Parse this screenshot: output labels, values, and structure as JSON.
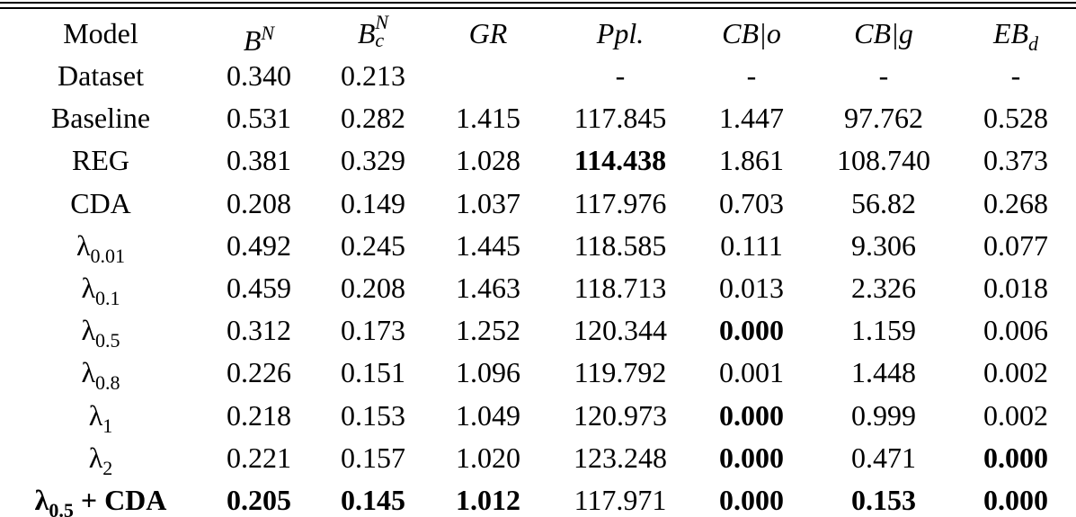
{
  "table": {
    "header": [
      {
        "text": "Model",
        "math": false
      },
      {
        "text": "B",
        "sup": "N",
        "math": true
      },
      {
        "text": "B",
        "sub": "c",
        "sup": "N",
        "math": true
      },
      {
        "text": "GR",
        "math": true
      },
      {
        "text": "Ppl.",
        "math": true
      },
      {
        "text": "CB|o",
        "math": true
      },
      {
        "text": "CB|g",
        "math": true
      },
      {
        "text": "EB",
        "sub": "d",
        "math": true
      }
    ],
    "rows": [
      {
        "model": {
          "text": "Dataset"
        },
        "values": [
          "0.340",
          "0.213",
          "",
          "-",
          "-",
          "-",
          "-"
        ],
        "bold": [
          false,
          false,
          false,
          false,
          false,
          false,
          false
        ]
      },
      {
        "model": {
          "text": "Baseline"
        },
        "values": [
          "0.531",
          "0.282",
          "1.415",
          "117.845",
          "1.447",
          "97.762",
          "0.528"
        ],
        "bold": [
          false,
          false,
          false,
          false,
          false,
          false,
          false
        ]
      },
      {
        "model": {
          "text": "REG"
        },
        "values": [
          "0.381",
          "0.329",
          "1.028",
          "114.438",
          "1.861",
          "108.740",
          "0.373"
        ],
        "bold": [
          false,
          false,
          false,
          true,
          false,
          false,
          false
        ]
      },
      {
        "model": {
          "text": "CDA"
        },
        "values": [
          "0.208",
          "0.149",
          "1.037",
          "117.976",
          "0.703",
          "56.82",
          "0.268"
        ],
        "bold": [
          false,
          false,
          false,
          false,
          false,
          false,
          false
        ]
      },
      {
        "model": {
          "text": "λ",
          "sub": "0.01"
        },
        "values": [
          "0.492",
          "0.245",
          "1.445",
          "118.585",
          "0.111",
          "9.306",
          "0.077"
        ],
        "bold": [
          false,
          false,
          false,
          false,
          false,
          false,
          false
        ]
      },
      {
        "model": {
          "text": "λ",
          "sub": "0.1"
        },
        "values": [
          "0.459",
          "0.208",
          "1.463",
          "118.713",
          "0.013",
          "2.326",
          "0.018"
        ],
        "bold": [
          false,
          false,
          false,
          false,
          false,
          false,
          false
        ]
      },
      {
        "model": {
          "text": "λ",
          "sub": "0.5"
        },
        "values": [
          "0.312",
          "0.173",
          "1.252",
          "120.344",
          "0.000",
          "1.159",
          "0.006"
        ],
        "bold": [
          false,
          false,
          false,
          false,
          true,
          false,
          false
        ]
      },
      {
        "model": {
          "text": "λ",
          "sub": "0.8"
        },
        "values": [
          "0.226",
          "0.151",
          "1.096",
          "119.792",
          "0.001",
          "1.448",
          "0.002"
        ],
        "bold": [
          false,
          false,
          false,
          false,
          false,
          false,
          false
        ]
      },
      {
        "model": {
          "text": "λ",
          "sub": "1"
        },
        "values": [
          "0.218",
          "0.153",
          "1.049",
          "120.973",
          "0.000",
          "0.999",
          "0.002"
        ],
        "bold": [
          false,
          false,
          false,
          false,
          true,
          false,
          false
        ]
      },
      {
        "model": {
          "text": "λ",
          "sub": "2"
        },
        "values": [
          "0.221",
          "0.157",
          "1.020",
          "123.248",
          "0.000",
          "0.471",
          "0.000"
        ],
        "bold": [
          false,
          false,
          false,
          false,
          true,
          false,
          true
        ]
      },
      {
        "model": {
          "text": "λ",
          "sub": "0.5",
          "suffix": " + CDA",
          "bold": true
        },
        "values": [
          "0.205",
          "0.145",
          "1.012",
          "117.971",
          "0.000",
          "0.153",
          "0.000"
        ],
        "bold": [
          true,
          true,
          true,
          false,
          true,
          true,
          true
        ]
      }
    ]
  }
}
